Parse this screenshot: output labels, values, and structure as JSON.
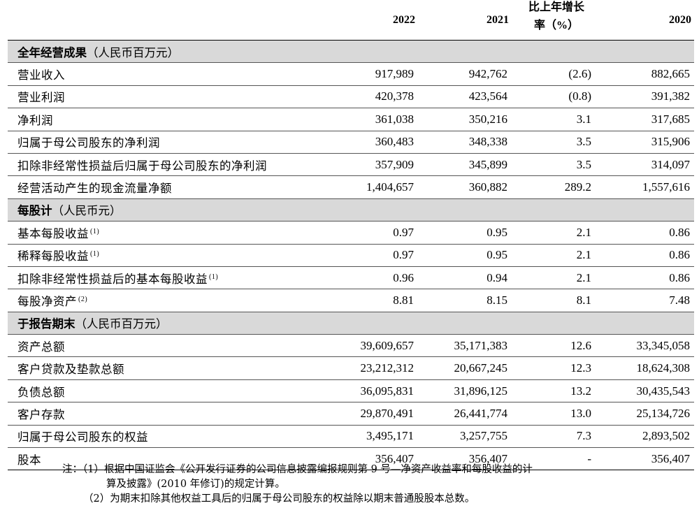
{
  "header": {
    "col_2022": "2022",
    "col_2021": "2021",
    "col_change_line1": "比上年增长",
    "col_change_line2": "率（%）",
    "col_2020": "2020"
  },
  "sections": [
    {
      "title": "全年经营成果",
      "unit": "（人民币百万元）",
      "rows": [
        {
          "label": "营业收入",
          "note": "",
          "v2022": "917,989",
          "v2021": "942,762",
          "change": "(2.6)",
          "v2020": "882,665"
        },
        {
          "label": "营业利润",
          "note": "",
          "v2022": "420,378",
          "v2021": "423,564",
          "change": "(0.8)",
          "v2020": "391,382"
        },
        {
          "label": "净利润",
          "note": "",
          "v2022": "361,038",
          "v2021": "350,216",
          "change": "3.1",
          "v2020": "317,685"
        },
        {
          "label": "归属于母公司股东的净利润",
          "note": "",
          "v2022": "360,483",
          "v2021": "348,338",
          "change": "3.5",
          "v2020": "315,906"
        },
        {
          "label": "扣除非经常性损益后归属于母公司股东的净利润",
          "note": "",
          "v2022": "357,909",
          "v2021": "345,899",
          "change": "3.5",
          "v2020": "314,097"
        },
        {
          "label": "经营活动产生的现金流量净额",
          "note": "",
          "v2022": "1,404,657",
          "v2021": "360,882",
          "change": "289.2",
          "v2020": "1,557,616"
        }
      ]
    },
    {
      "title": "每股计",
      "unit": "（人民币元）",
      "rows": [
        {
          "label": "基本每股收益",
          "note": "(1)",
          "v2022": "0.97",
          "v2021": "0.95",
          "change": "2.1",
          "v2020": "0.86"
        },
        {
          "label": "稀释每股收益",
          "note": "(1)",
          "v2022": "0.97",
          "v2021": "0.95",
          "change": "2.1",
          "v2020": "0.86"
        },
        {
          "label": "扣除非经常性损益后的基本每股收益",
          "note": "(1)",
          "v2022": "0.96",
          "v2021": "0.94",
          "change": "2.1",
          "v2020": "0.86"
        },
        {
          "label": "每股净资产",
          "note": "(2)",
          "v2022": "8.81",
          "v2021": "8.15",
          "change": "8.1",
          "v2020": "7.48"
        }
      ]
    },
    {
      "title": "于报告期末",
      "unit": "（人民币百万元）",
      "rows": [
        {
          "label": "资产总额",
          "note": "",
          "v2022": "39,609,657",
          "v2021": "35,171,383",
          "change": "12.6",
          "v2020": "33,345,058"
        },
        {
          "label": "客户贷款及垫款总额",
          "note": "",
          "v2022": "23,212,312",
          "v2021": "20,667,245",
          "change": "12.3",
          "v2020": "18,624,308"
        },
        {
          "label": "负债总额",
          "note": "",
          "v2022": "36,095,831",
          "v2021": "31,896,125",
          "change": "13.2",
          "v2020": "30,435,543"
        },
        {
          "label": "客户存款",
          "note": "",
          "v2022": "29,870,491",
          "v2021": "26,441,774",
          "change": "13.0",
          "v2020": "25,134,726"
        },
        {
          "label": "归属于母公司股东的权益",
          "note": "",
          "v2022": "3,495,171",
          "v2021": "3,257,755",
          "change": "7.3",
          "v2020": "2,893,502"
        },
        {
          "label": "股本",
          "note": "",
          "v2022": "356,407",
          "v2021": "356,407",
          "change": "-",
          "v2020": "356,407"
        }
      ]
    }
  ],
  "notes": {
    "prefix": "注：",
    "note1_line1": "（1）根据中国证监会《公开发行证券的公司信息披露编报规则第 9 号—净资产收益率和每股收益的计",
    "note1_line2": "算及披露》(2010 年修订)的规定计算。",
    "note2": "（2）为期末扣除其他权益工具后的归属于母公司股东的权益除以期末普通股股本总数。"
  }
}
